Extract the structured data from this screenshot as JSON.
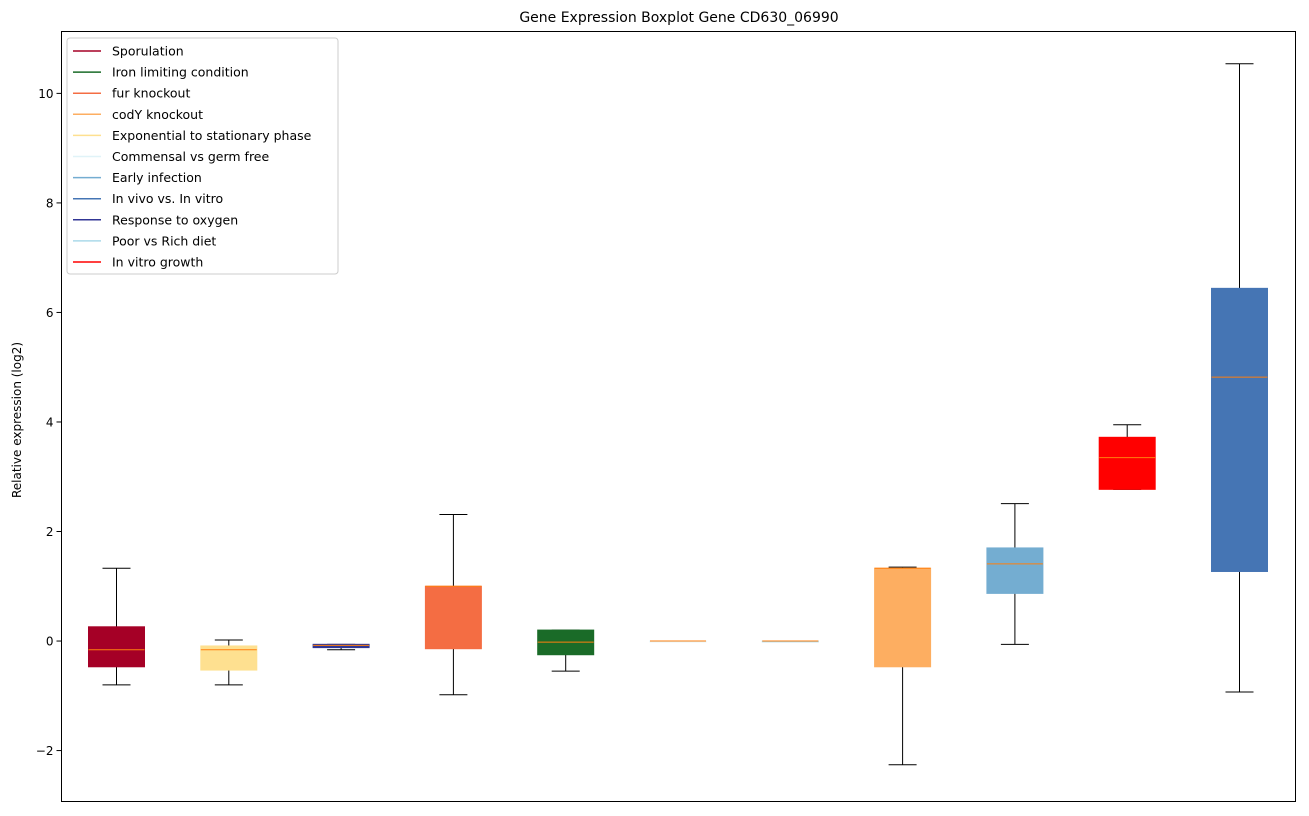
{
  "chart_data": {
    "type": "boxplot",
    "title": "Gene Expression Boxplot Gene CD630_06990",
    "ylabel": "Relative expression (log2)",
    "xlabel": "",
    "ylim": [
      -2.93,
      11.13
    ],
    "yticks": [
      -2,
      0,
      2,
      4,
      6,
      8,
      10
    ],
    "yticklabels": [
      "−2",
      "0",
      "2",
      "4",
      "6",
      "8",
      "10"
    ],
    "grid": false,
    "legend_position": "top-left",
    "legend": [
      {
        "label": "Sporulation",
        "color": "#a50026"
      },
      {
        "label": "Iron limiting condition",
        "color": "#1a6b28"
      },
      {
        "label": "fur knockout",
        "color": "#f46d43"
      },
      {
        "label": "codY knockout",
        "color": "#fdae61"
      },
      {
        "label": "Exponential to stationary phase",
        "color": "#fee090"
      },
      {
        "label": "Commensal vs germ free",
        "color": "#e0f3f8"
      },
      {
        "label": "Early infection",
        "color": "#74add1"
      },
      {
        "label": "In vivo vs. In vitro",
        "color": "#4575b4"
      },
      {
        "label": "Response to oxygen",
        "color": "#313695"
      },
      {
        "label": "Poor vs Rich diet",
        "color": "#abd9e9"
      },
      {
        "label": "In vitro growth",
        "color": "#ff0000"
      }
    ],
    "median_color": "#ff7f0e",
    "boxes": [
      {
        "color": "#a50026",
        "whisker_low": -0.8,
        "q1": -0.47,
        "median": -0.16,
        "q3": 0.26,
        "whisker_high": 1.33
      },
      {
        "color": "#fee090",
        "whisker_low": -0.8,
        "q1": -0.53,
        "median": -0.16,
        "q3": -0.09,
        "whisker_high": 0.02
      },
      {
        "color": "#313695",
        "whisker_low": -0.16,
        "q1": -0.12,
        "median": -0.08,
        "q3": -0.06,
        "whisker_high": -0.06
      },
      {
        "color": "#f46d43",
        "whisker_low": -0.98,
        "q1": -0.14,
        "median": 1.0,
        "q3": 1.0,
        "whisker_high": 2.31
      },
      {
        "color": "#1a6b28",
        "whisker_low": -0.55,
        "q1": -0.25,
        "median": -0.02,
        "q3": 0.2,
        "whisker_high": 0.2
      },
      {
        "color": "#e0f3f8",
        "whisker_low": 0.0,
        "q1": 0.0,
        "median": 0.0,
        "q3": 0.0,
        "whisker_high": 0.0
      },
      {
        "color": "#abd9e9",
        "whisker_low": 0.0,
        "q1": 0.0,
        "median": 0.0,
        "q3": 0.0,
        "whisker_high": 0.0
      },
      {
        "color": "#fdae61",
        "whisker_low": -2.26,
        "q1": -0.47,
        "median": 1.33,
        "q3": 1.33,
        "whisker_high": 1.35
      },
      {
        "color": "#74add1",
        "whisker_low": -0.06,
        "q1": 0.87,
        "median": 1.41,
        "q3": 1.7,
        "whisker_high": 2.51
      },
      {
        "color": "#ff0000",
        "whisker_low": 2.77,
        "q1": 2.77,
        "median": 3.35,
        "q3": 3.72,
        "whisker_high": 3.95
      },
      {
        "color": "#4575b4",
        "whisker_low": -0.93,
        "q1": 1.27,
        "median": 4.82,
        "q3": 6.44,
        "whisker_high": 10.54
      }
    ]
  }
}
